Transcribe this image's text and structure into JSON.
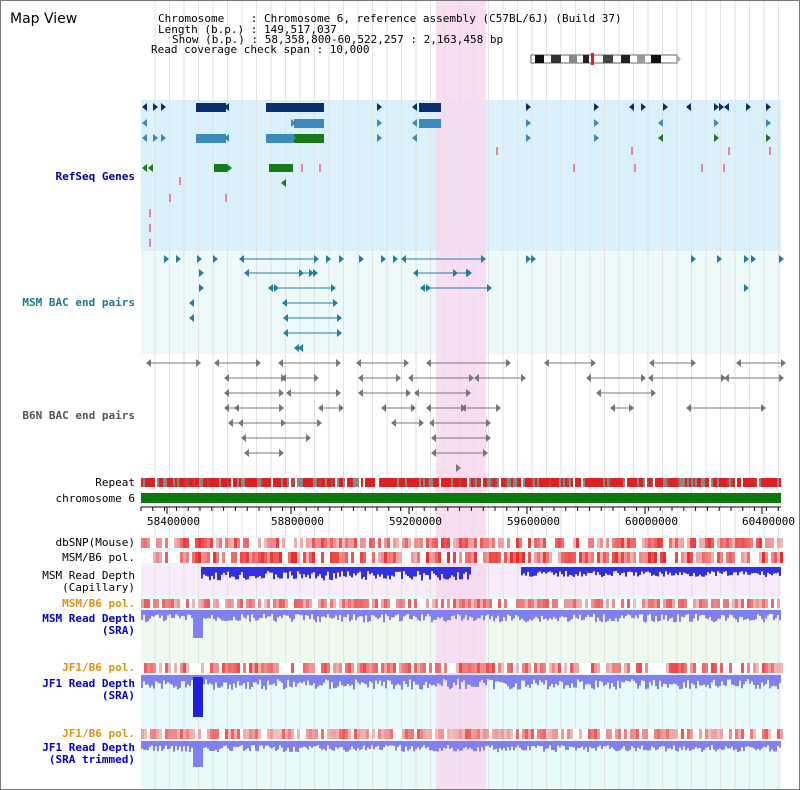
{
  "header": {
    "title": "Map View",
    "info_lines": [
      "Chromosome    : Chromosome 6, reference assembly (C57BL/6J) (Build 37)",
      "Length (b.p.) : 149,517,037",
      "Show (b.p.) : 58,358,800-60,522,257 : 2,163,458 bp",
      "Read coverage check span : 10,000"
    ]
  },
  "tracks": {
    "refseq": "RefSeq Genes",
    "msm_bac": "MSM BAC end pairs",
    "b6n_bac": "B6N BAC end pairs",
    "repeat": "Repeat",
    "chromosome": "chromosome 6",
    "dbsnp": "dbSNP(Mouse)",
    "msm_b6_pol_1": "MSM/B6 pol.",
    "msm_depth_cap_1": "MSM Read Depth",
    "msm_depth_cap_2": "(Capillary)",
    "msm_b6_pol_2": "MSM/B6 pol.",
    "msm_depth_sra_1": "MSM Read Depth",
    "msm_depth_sra_2": "(SRA)",
    "jf1_pol_1": "JF1/B6 pol.",
    "jf1_depth_sra_1": "JF1 Read Depth",
    "jf1_depth_sra_2": "(SRA)",
    "jf1_pol_2": "JF1/B6 pol.",
    "jf1_depth_trim_1": "JF1 Read Depth",
    "jf1_depth_trim_2": "(SRA trimmed)"
  },
  "axis": {
    "ticks": [
      "58400000",
      "58800000",
      "59200000",
      "59600000",
      "60000000",
      "60400000"
    ]
  },
  "colors": {
    "refseq_bg": "#daf0fa",
    "msm_bac_bg": "#eefafa",
    "highlight": "#f8d8f0",
    "repeat_red": "#e02020",
    "chrom_green": "#0a7a0a",
    "gene_navy": "#0a2f6e",
    "gene_mid": "#3a8aba",
    "gene_green": "#1a7a1a",
    "depth_blue": "#3030e0",
    "depth_light": "#8080f0"
  }
}
